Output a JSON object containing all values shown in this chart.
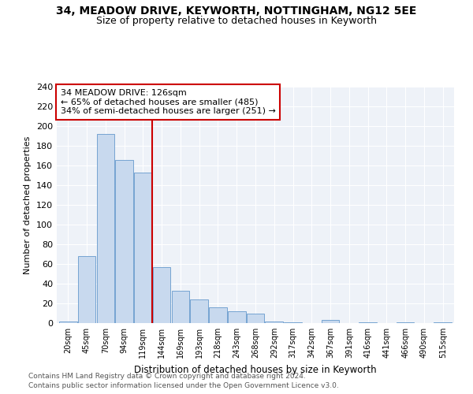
{
  "title": "34, MEADOW DRIVE, KEYWORTH, NOTTINGHAM, NG12 5EE",
  "subtitle": "Size of property relative to detached houses in Keyworth",
  "xlabel": "Distribution of detached houses by size in Keyworth",
  "ylabel": "Number of detached properties",
  "categories": [
    "20sqm",
    "45sqm",
    "70sqm",
    "94sqm",
    "119sqm",
    "144sqm",
    "169sqm",
    "193sqm",
    "218sqm",
    "243sqm",
    "268sqm",
    "292sqm",
    "317sqm",
    "342sqm",
    "367sqm",
    "391sqm",
    "416sqm",
    "441sqm",
    "466sqm",
    "490sqm",
    "515sqm"
  ],
  "values": [
    2,
    68,
    192,
    166,
    153,
    57,
    33,
    24,
    16,
    12,
    10,
    2,
    1,
    0,
    3,
    0,
    1,
    0,
    1,
    0,
    1
  ],
  "bar_color": "#c8d9ee",
  "bar_edge_color": "#6699cc",
  "vline_x": 4.5,
  "vline_color": "#cc0000",
  "annotation_title": "34 MEADOW DRIVE: 126sqm",
  "annotation_line1": "← 65% of detached houses are smaller (485)",
  "annotation_line2": "34% of semi-detached houses are larger (251) →",
  "annotation_box_color": "#ffffff",
  "annotation_box_edge": "#cc0000",
  "footer1": "Contains HM Land Registry data © Crown copyright and database right 2024.",
  "footer2": "Contains public sector information licensed under the Open Government Licence v3.0.",
  "ylim": [
    0,
    240
  ],
  "yticks": [
    0,
    20,
    40,
    60,
    80,
    100,
    120,
    140,
    160,
    180,
    200,
    220,
    240
  ],
  "bg_color": "#eef2f8",
  "title_fontsize": 10,
  "subtitle_fontsize": 9
}
